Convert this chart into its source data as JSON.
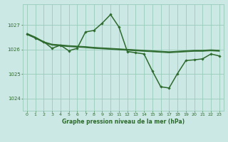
{
  "bg_color": "#cce8e4",
  "grid_color": "#99ccbb",
  "line_color": "#2d6a2d",
  "title": "Graphe pression niveau de la mer (hPa)",
  "xlim": [
    -0.5,
    23.5
  ],
  "ylim": [
    1023.5,
    1027.85
  ],
  "yticks": [
    1024,
    1025,
    1026,
    1027
  ],
  "xticks": [
    0,
    1,
    2,
    3,
    4,
    5,
    6,
    7,
    8,
    9,
    10,
    11,
    12,
    13,
    14,
    15,
    16,
    17,
    18,
    19,
    20,
    21,
    22,
    23
  ],
  "main_x": [
    0,
    1,
    2,
    3,
    4,
    5,
    6,
    7,
    8,
    9,
    10,
    11,
    12,
    13,
    14,
    15,
    16,
    17,
    18,
    19,
    20,
    21,
    22,
    23
  ],
  "main_y": [
    1026.62,
    1026.47,
    1026.32,
    1026.05,
    1026.18,
    1025.95,
    1026.05,
    1026.72,
    1026.78,
    1027.08,
    1027.43,
    1026.92,
    1025.92,
    1025.87,
    1025.82,
    1025.12,
    1024.48,
    1024.43,
    1025.02,
    1025.55,
    1025.58,
    1025.62,
    1025.82,
    1025.74
  ],
  "flat_lines": [
    [
      1026.62,
      1026.47,
      1026.28,
      1026.18,
      1026.15,
      1026.12,
      1026.1,
      1026.08,
      1026.05,
      1026.03,
      1026.01,
      1025.99,
      1025.97,
      1025.95,
      1025.93,
      1025.91,
      1025.89,
      1025.87,
      1025.89,
      1025.91,
      1025.93,
      1025.93,
      1025.95,
      1025.93
    ],
    [
      1026.64,
      1026.49,
      1026.3,
      1026.2,
      1026.17,
      1026.14,
      1026.12,
      1026.1,
      1026.07,
      1026.05,
      1026.03,
      1026.01,
      1025.99,
      1025.97,
      1025.95,
      1025.93,
      1025.91,
      1025.89,
      1025.91,
      1025.93,
      1025.95,
      1025.95,
      1025.97,
      1025.95
    ],
    [
      1026.66,
      1026.51,
      1026.32,
      1026.22,
      1026.19,
      1026.16,
      1026.14,
      1026.12,
      1026.09,
      1026.07,
      1026.05,
      1026.03,
      1026.01,
      1025.99,
      1025.97,
      1025.95,
      1025.93,
      1025.91,
      1025.93,
      1025.95,
      1025.97,
      1025.97,
      1025.99,
      1025.97
    ]
  ]
}
